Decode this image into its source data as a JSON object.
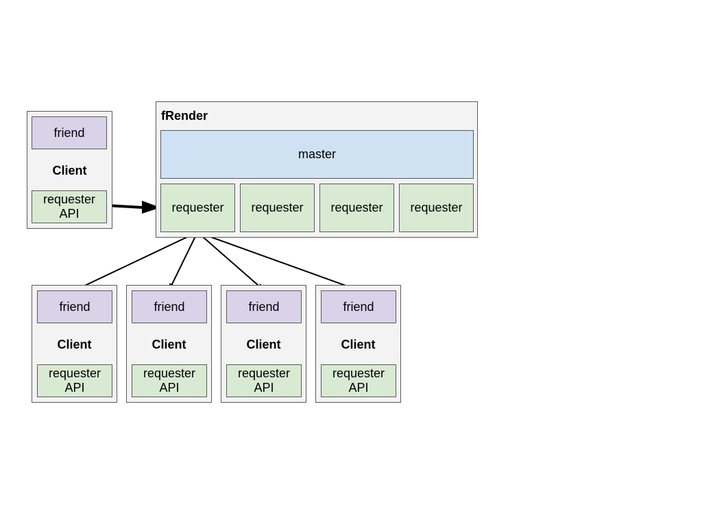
{
  "frender": {
    "title": "fRender",
    "master": "master",
    "requesters": [
      "requester",
      "requester",
      "requester",
      "requester"
    ]
  },
  "source_client": {
    "friend": "friend",
    "label": "Client",
    "api": "requester\nAPI"
  },
  "target_clients": [
    {
      "friend": "friend",
      "label": "Client",
      "api": "requester\nAPI"
    },
    {
      "friend": "friend",
      "label": "Client",
      "api": "requester\nAPI"
    },
    {
      "friend": "friend",
      "label": "Client",
      "api": "requester\nAPI"
    },
    {
      "friend": "friend",
      "label": "Client",
      "api": "requester\nAPI"
    }
  ],
  "colors": {
    "friend": "#d9d2e9",
    "requester": "#d9ead3",
    "master": "#cfe2f3",
    "container": "#f3f3f3",
    "border": "#595959"
  }
}
